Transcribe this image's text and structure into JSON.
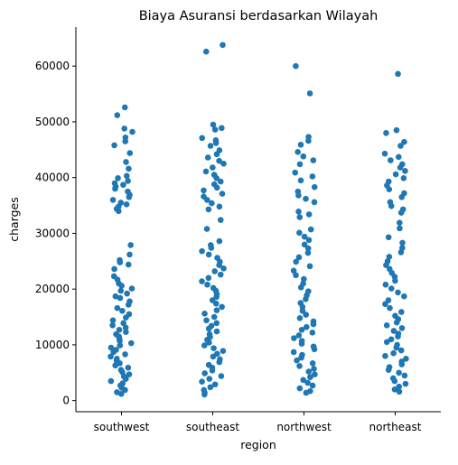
{
  "chart_data": {
    "type": "scatter",
    "subtype": "strip",
    "title": "Biaya Asuransi berdasarkan Wilayah",
    "xlabel": "region",
    "ylabel": "charges",
    "categories": [
      "southwest",
      "southeast",
      "northwest",
      "northeast"
    ],
    "ylim": [
      -2000,
      67000
    ],
    "yticks": [
      0,
      10000,
      20000,
      30000,
      40000,
      50000,
      60000
    ],
    "ytick_labels": [
      "0",
      "10000",
      "20000",
      "30000",
      "40000",
      "50000",
      "60000"
    ],
    "grid": false,
    "legend": "none",
    "point_color": "#1f77b4",
    "series": [
      {
        "category": "southwest",
        "values": [
          52600,
          51200,
          48800,
          48200,
          47200,
          46500,
          45800,
          44400,
          42800,
          41600,
          40300,
          39900,
          39400,
          39000,
          38700,
          38400,
          38000,
          37500,
          36900,
          36500,
          36000,
          35500,
          35200,
          34800,
          34400,
          34000,
          27900,
          26200,
          25200,
          24800,
          24400,
          23600,
          22300,
          21700,
          21000,
          20600,
          20100,
          19700,
          19200,
          18700,
          18400,
          17800,
          17200,
          16600,
          16100,
          15500,
          14900,
          14400,
          13900,
          13500,
          13100,
          12700,
          12300,
          11900,
          11500,
          11100,
          10700,
          10300,
          9900,
          9500,
          9100,
          8700,
          8300,
          7900,
          7500,
          7100,
          6700,
          6300,
          5900,
          5500,
          5100,
          4700,
          4300,
          3900,
          3500,
          3100,
          2700,
          2300,
          1900,
          1500,
          1200
        ]
      },
      {
        "category": "southeast",
        "values": [
          63800,
          62600,
          49500,
          48900,
          48600,
          47100,
          46700,
          46200,
          45700,
          44900,
          44200,
          43600,
          43000,
          42500,
          41800,
          41100,
          40500,
          39900,
          39300,
          38800,
          38200,
          37700,
          37100,
          36600,
          36000,
          35400,
          34800,
          34300,
          32400,
          30800,
          28600,
          27900,
          27400,
          26800,
          26200,
          25600,
          24900,
          24300,
          23700,
          23200,
          22600,
          22000,
          21400,
          20800,
          20200,
          19700,
          19100,
          18600,
          18000,
          17400,
          16800,
          16200,
          15600,
          15000,
          14400,
          13900,
          13400,
          12900,
          12400,
          11900,
          11400,
          10900,
          10400,
          9900,
          9400,
          8900,
          8400,
          7900,
          7400,
          6900,
          6400,
          5900,
          5400,
          4900,
          4400,
          3900,
          3400,
          2900,
          2400,
          1900,
          1400,
          1100
        ]
      },
      {
        "category": "northwest",
        "values": [
          60000,
          55100,
          47300,
          46600,
          45900,
          44600,
          43800,
          43100,
          42400,
          40900,
          40200,
          39500,
          38300,
          37500,
          36800,
          36200,
          35600,
          33900,
          33400,
          32900,
          30700,
          30100,
          29400,
          28800,
          28000,
          27300,
          26500,
          25700,
          24900,
          24100,
          23300,
          22500,
          21800,
          21000,
          20300,
          19600,
          18900,
          18200,
          17500,
          16800,
          16100,
          15400,
          14800,
          14200,
          13700,
          13200,
          12700,
          12200,
          11700,
          11200,
          10700,
          10200,
          9700,
          9200,
          8700,
          8200,
          7700,
          7200,
          6700,
          6200,
          5700,
          5200,
          4700,
          4200,
          3700,
          3200,
          2700,
          2200,
          1700,
          1400
        ]
      },
      {
        "category": "northeast",
        "values": [
          58600,
          48500,
          48000,
          46400,
          45700,
          44300,
          43700,
          43100,
          42400,
          41800,
          41200,
          40600,
          39900,
          39300,
          38600,
          37900,
          37200,
          36500,
          35600,
          34900,
          34300,
          33700,
          31900,
          30900,
          29300,
          28300,
          27400,
          26600,
          25800,
          25000,
          24300,
          23600,
          22900,
          22200,
          21500,
          20800,
          20100,
          19400,
          18700,
          18000,
          17300,
          16600,
          15900,
          15200,
          14600,
          14000,
          13500,
          13000,
          12500,
          12000,
          11500,
          11000,
          10500,
          10000,
          9500,
          9000,
          8500,
          8000,
          7500,
          7000,
          6500,
          6000,
          5500,
          5000,
          4500,
          4000,
          3500,
          3000,
          2500,
          2000,
          1600
        ]
      }
    ]
  }
}
